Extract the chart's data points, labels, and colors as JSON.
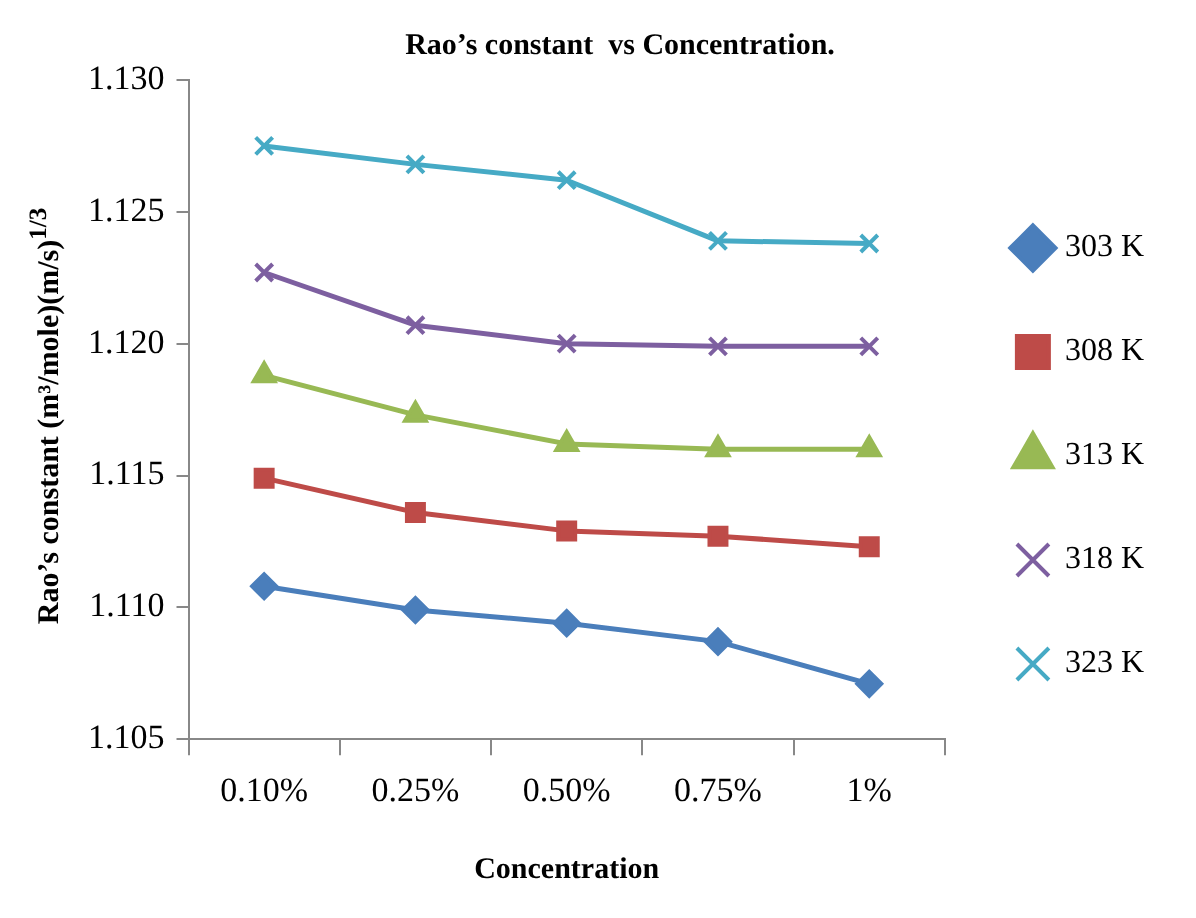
{
  "chart_data": {
    "type": "line",
    "title": "Rao’s constant  vs Concentration.",
    "xlabel": "Concentration",
    "ylabel": "Rao’s constant  (m³/mole)(m/s)$^{1/3}$",
    "categories": [
      "0.10%",
      "0.25%",
      "0.50%",
      "0.75%",
      "1%"
    ],
    "ylim": [
      1.105,
      1.13
    ],
    "yticks": [
      {
        "value": 1.105,
        "label": "1.105"
      },
      {
        "value": 1.11,
        "label": "1.110"
      },
      {
        "value": 1.115,
        "label": "1.115"
      },
      {
        "value": 1.12,
        "label": "1.120"
      },
      {
        "value": 1.125,
        "label": "1.125"
      },
      {
        "value": 1.13,
        "label": "1.130"
      }
    ],
    "grid": false,
    "legend": "right",
    "line_style": "solid",
    "series": [
      {
        "name": "303 K",
        "color": "#4a7ebb",
        "marker": "diamond",
        "values": [
          1.1108,
          1.1099,
          1.1094,
          1.1087,
          1.1071
        ]
      },
      {
        "name": "308 K",
        "color": "#be4b48",
        "marker": "square",
        "values": [
          1.1149,
          1.1136,
          1.1129,
          1.1127,
          1.1123
        ]
      },
      {
        "name": "313 K",
        "color": "#98b954",
        "marker": "triangle",
        "values": [
          1.1188,
          1.1173,
          1.1162,
          1.116,
          1.116
        ]
      },
      {
        "name": "318 K",
        "color": "#7d5fa0",
        "marker": "cross",
        "values": [
          1.1227,
          1.1207,
          1.12,
          1.1199,
          1.1199
        ]
      },
      {
        "name": "323 K",
        "color": "#46aac5",
        "marker": "cross",
        "values": [
          1.1275,
          1.1268,
          1.1262,
          1.1239,
          1.1238
        ]
      }
    ]
  }
}
